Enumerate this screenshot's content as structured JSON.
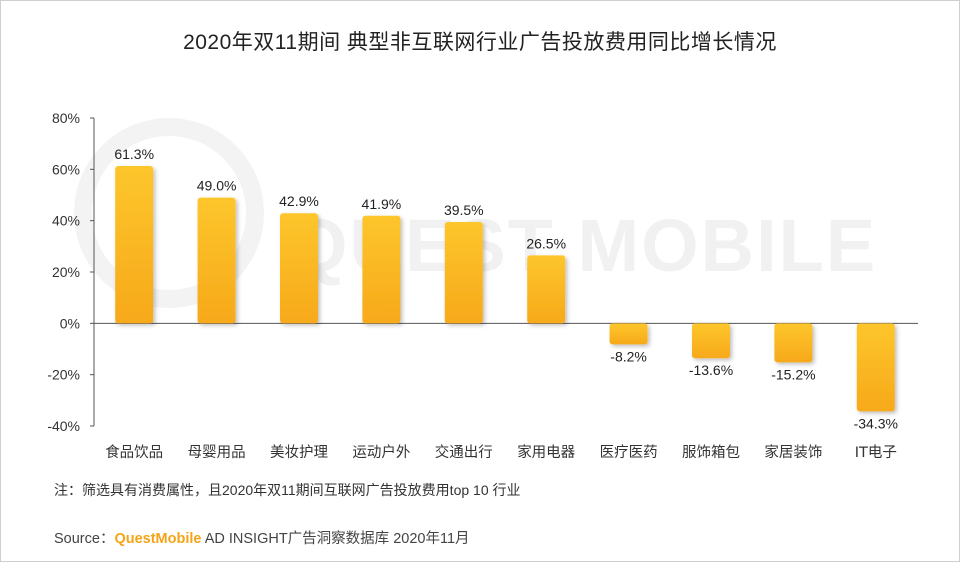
{
  "chart_data": {
    "type": "bar",
    "title": "2020年双11期间 典型非互联网行业广告投放费用同比增长情况",
    "categories": [
      "食品饮品",
      "母婴用品",
      "美妆护理",
      "运动户外",
      "交通出行",
      "家用电器",
      "医疗医药",
      "服饰箱包",
      "家居装饰",
      "IT电子"
    ],
    "values": [
      61.3,
      49.0,
      42.9,
      41.9,
      39.5,
      26.5,
      -8.2,
      -13.6,
      -15.2,
      -34.3
    ],
    "value_labels": [
      "61.3%",
      "49.0%",
      "42.9%",
      "41.9%",
      "39.5%",
      "26.5%",
      "-8.2%",
      "-13.6%",
      "-15.2%",
      "-34.3%"
    ],
    "ylim": [
      -40,
      80
    ],
    "yticks": [
      80,
      60,
      40,
      20,
      0,
      -20,
      -40
    ],
    "ytick_labels": [
      "80%",
      "60%",
      "40%",
      "20%",
      "0%",
      "-20%",
      "-40%"
    ],
    "xlabel": "",
    "ylabel": "",
    "grid": false,
    "bar_color_top": "#fdc62c",
    "bar_color_bottom": "#f7a91a"
  },
  "watermark": "QUEST MOBILE",
  "note": "注：筛选具有消费属性，且2020年双11期间互联网广告投放费用top 10 行业",
  "source": {
    "prefix": "Source：",
    "brand": "QuestMobile",
    "suffix": " AD INSIGHT广告洞察数据库 2020年11月"
  }
}
